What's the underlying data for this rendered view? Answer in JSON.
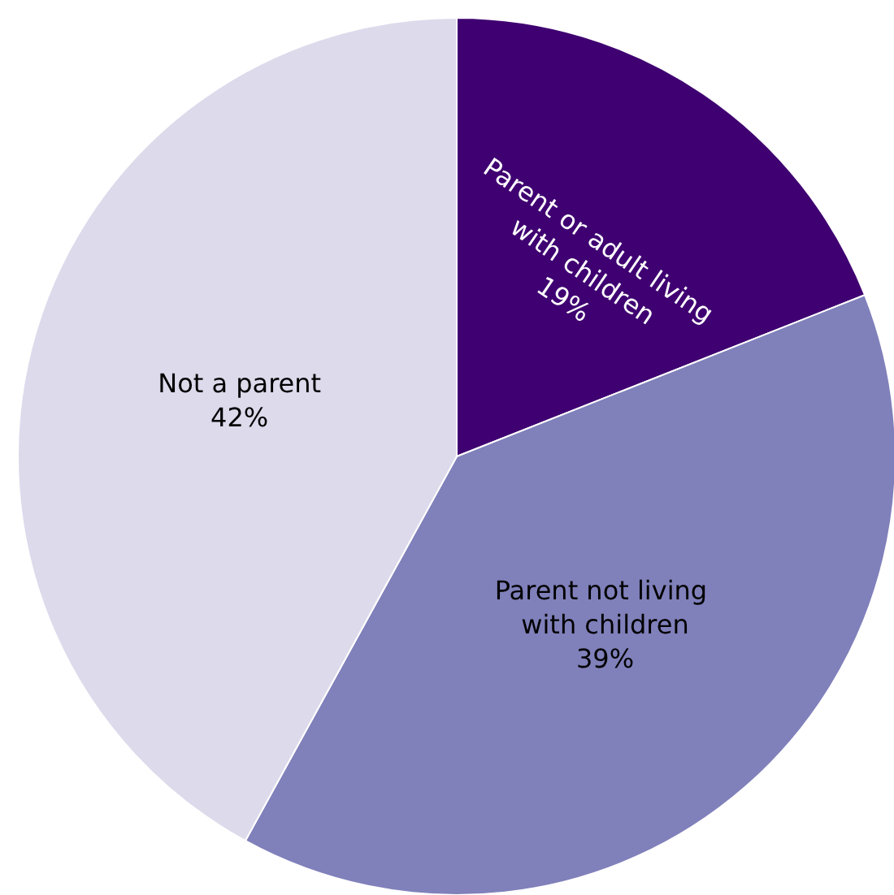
{
  "chart_data": {
    "type": "pie",
    "categories": [
      "Parent or adult living with children",
      "Parent not living with children",
      "Not a parent"
    ],
    "values": [
      19,
      39,
      42
    ],
    "colors": [
      "#3f0071",
      "#8080bb",
      "#dcdaeb"
    ],
    "value_labels": [
      "19%",
      "39%",
      "42%"
    ],
    "legend": false
  }
}
